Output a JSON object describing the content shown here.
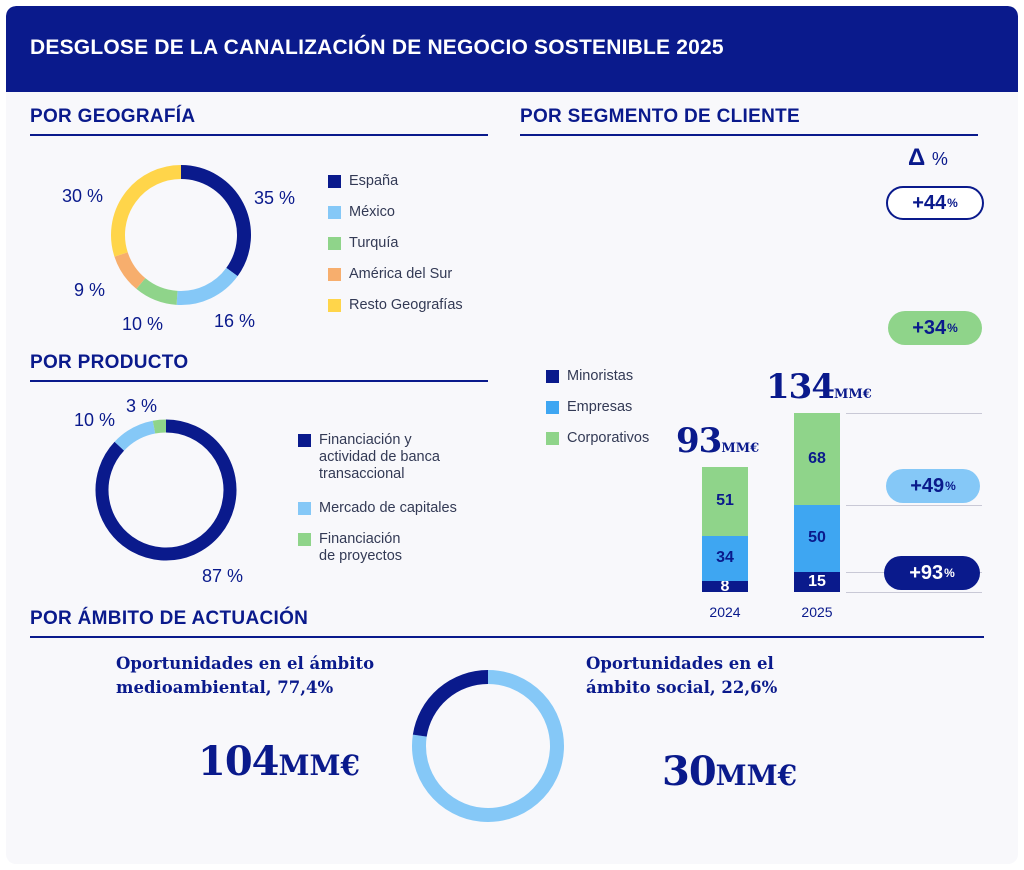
{
  "header": {
    "title": "DESGLOSE DE LA CANALIZACIÓN DE NEGOCIO SOSTENIBLE 2025"
  },
  "colors": {
    "navy": "#0a1a8c",
    "light_blue": "#85c8f7",
    "mid_blue": "#3ea6f2",
    "green": "#8fd48a",
    "orange": "#f7ae6d",
    "yellow": "#ffd54a"
  },
  "geografia": {
    "title": "POR GEOGRAFÍA"
  },
  "producto": {
    "title": "POR PRODUCTO"
  },
  "segmento": {
    "title": "POR SEGMENTO DE CLIENTE",
    "delta_title": "Δ",
    "delta_unit": "%",
    "legend": [
      "Minoristas",
      "Empresas",
      "Corporativos"
    ]
  },
  "ambito": {
    "title": "POR ÁMBITO DE ACTUACIÓN",
    "env_line1": "Oportunidades en el ámbito",
    "env_line2": "medioambiental, 77,4%",
    "env_value": "104",
    "env_unit": "MM€",
    "soc_line1": "Oportunidades en el",
    "soc_line2": "ámbito social, 22,6%",
    "soc_value": "30",
    "soc_unit": "MM€"
  },
  "chart_data": [
    {
      "type": "pie",
      "title": "POR GEOGRAFÍA",
      "categories": [
        "España",
        "México",
        "Turquía",
        "América del Sur",
        "Resto Geografías"
      ],
      "values": [
        35,
        16,
        10,
        9,
        30
      ],
      "labels": [
        "35 %",
        "16 %",
        "10 %",
        "9 %",
        "30 %"
      ],
      "colors": [
        "#0a1a8c",
        "#85c8f7",
        "#8fd48a",
        "#f7ae6d",
        "#ffd54a"
      ]
    },
    {
      "type": "pie",
      "title": "POR PRODUCTO",
      "categories": [
        "Financiación y actividad de banca transaccional",
        "Mercado de capitales",
        "Financiación de proyectos"
      ],
      "legend_lines": [
        [
          "Financiación y",
          "actividad de banca",
          "transaccional"
        ],
        [
          "Mercado de capitales"
        ],
        [
          "Financiación",
          "de proyectos"
        ]
      ],
      "values": [
        87,
        10,
        3
      ],
      "labels": [
        "87 %",
        "10 %",
        "3 %"
      ],
      "colors": [
        "#0a1a8c",
        "#85c8f7",
        "#8fd48a"
      ]
    },
    {
      "type": "bar",
      "title": "POR SEGMENTO DE CLIENTE",
      "stacked": true,
      "categories": [
        "2024",
        "2025"
      ],
      "series": [
        {
          "name": "Minoristas",
          "values": [
            8,
            15
          ],
          "color": "#0a1a8c",
          "delta": "+93",
          "delta_sup": "%"
        },
        {
          "name": "Empresas",
          "values": [
            34,
            50
          ],
          "color": "#3ea6f2",
          "delta": "+49",
          "delta_sup": "%"
        },
        {
          "name": "Corporativos",
          "values": [
            51,
            68
          ],
          "color": "#8fd48a",
          "delta": "+34",
          "delta_sup": "%"
        }
      ],
      "totals": [
        "93",
        "134"
      ],
      "total_unit": "MM€",
      "total_delta": "+44",
      "total_delta_sup": "%"
    },
    {
      "type": "pie",
      "title": "POR ÁMBITO DE ACTUACIÓN",
      "categories": [
        "medioambiental",
        "social"
      ],
      "values": [
        77.4,
        22.6
      ],
      "colors": [
        "#85c8f7",
        "#0a1a8c"
      ]
    }
  ]
}
